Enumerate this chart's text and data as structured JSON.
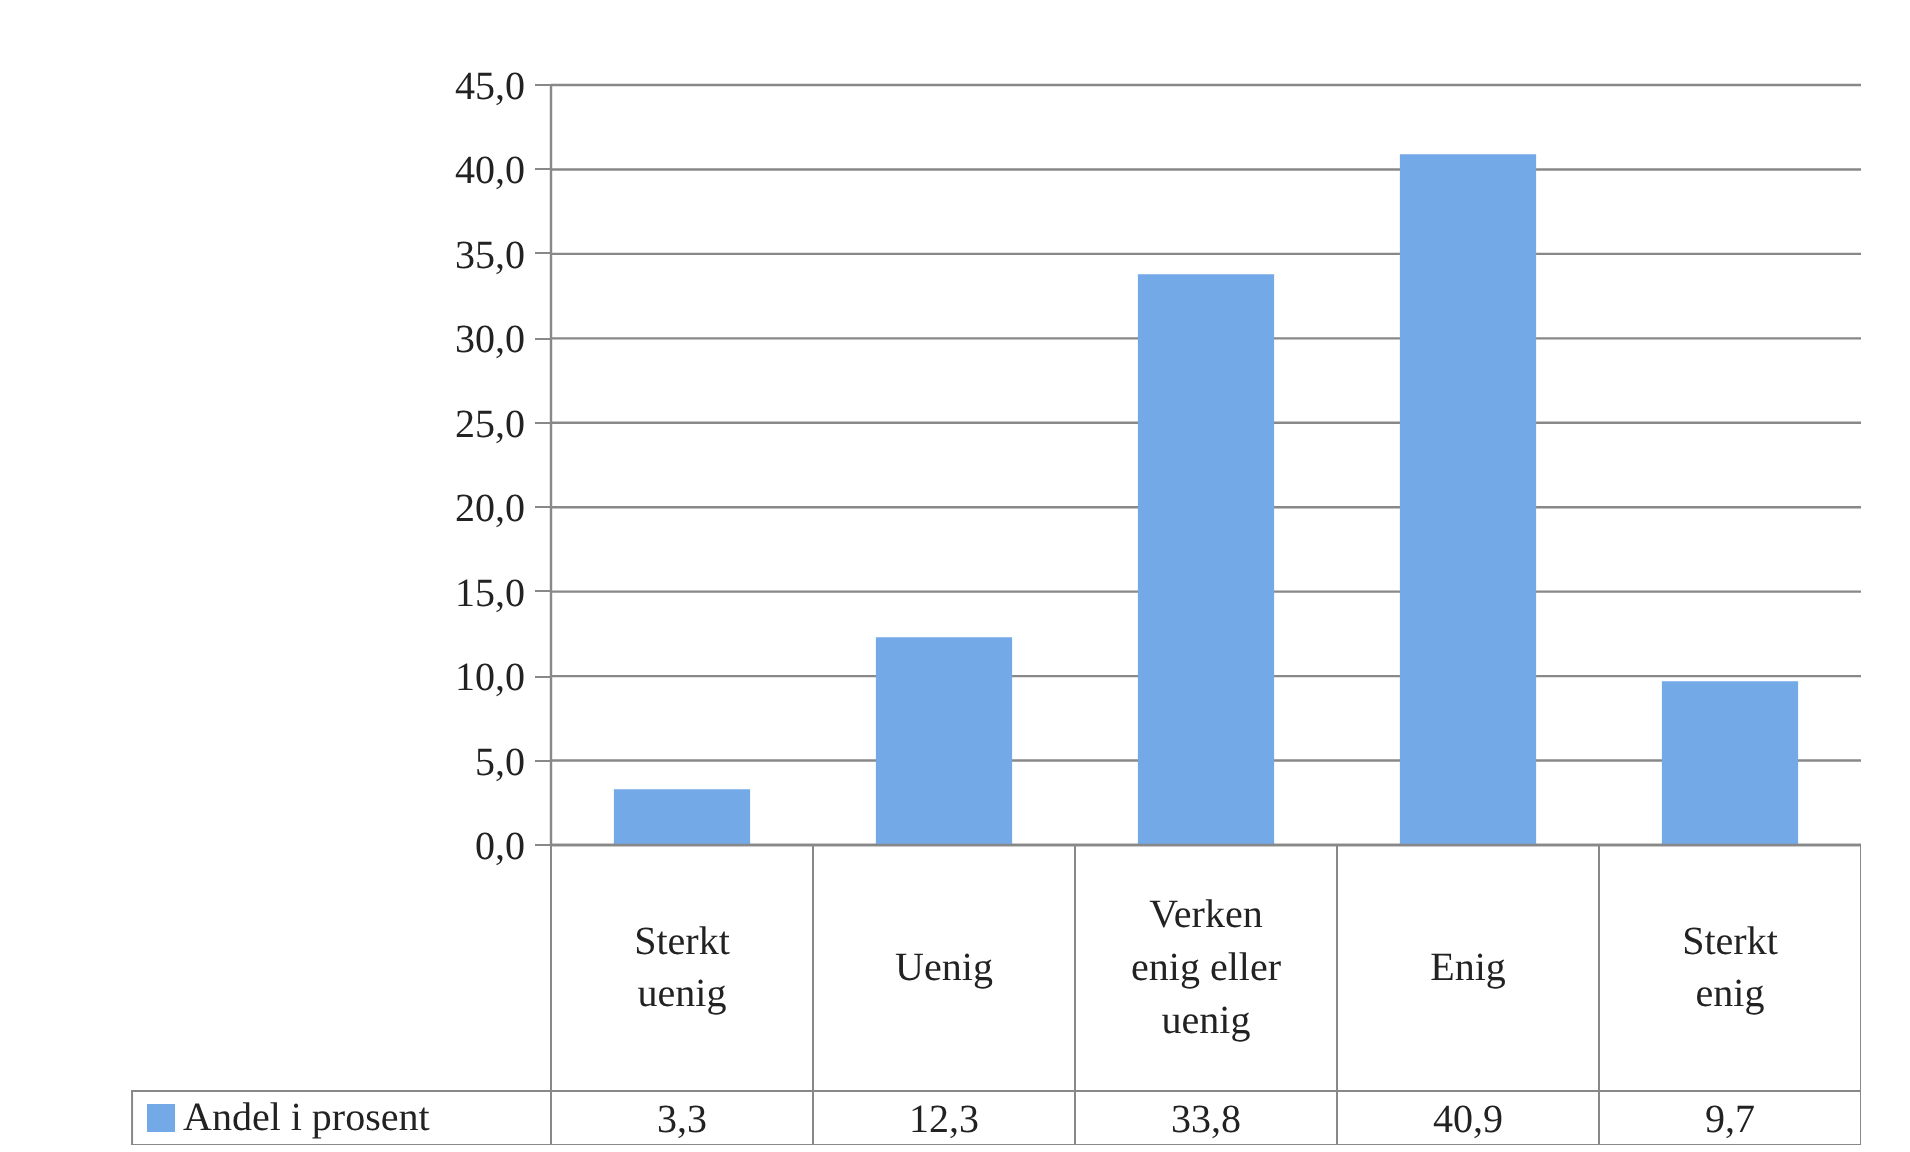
{
  "chart_data": {
    "type": "bar",
    "categories": [
      "Sterkt uenig",
      "Uenig",
      "Verken enig eller uenig",
      "Enig",
      "Sterkt enig"
    ],
    "series": [
      {
        "name": "Andel i prosent",
        "color": "#74a9e8",
        "values": [
          3.3,
          12.3,
          33.8,
          40.9,
          9.7
        ],
        "value_labels": [
          "3,3",
          "12,3",
          "33,8",
          "40,9",
          "9,7"
        ]
      }
    ],
    "ylim": [
      0,
      45
    ],
    "yticks": [
      {
        "value": 0,
        "label": "0,0"
      },
      {
        "value": 5,
        "label": "5,0"
      },
      {
        "value": 10,
        "label": "10,0"
      },
      {
        "value": 15,
        "label": "15,0"
      },
      {
        "value": 20,
        "label": "20,0"
      },
      {
        "value": 25,
        "label": "25,0"
      },
      {
        "value": 30,
        "label": "30,0"
      },
      {
        "value": 35,
        "label": "35,0"
      },
      {
        "value": 40,
        "label": "40,0"
      },
      {
        "value": 45,
        "label": "45,0"
      }
    ],
    "grid": "y",
    "legend": "bottom"
  }
}
